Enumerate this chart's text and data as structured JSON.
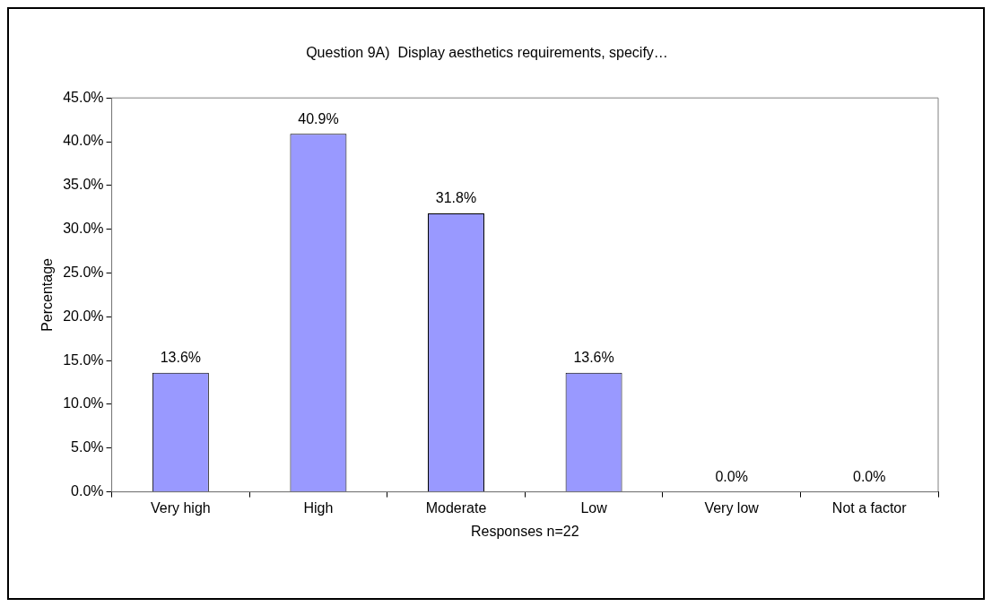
{
  "chart_data": {
    "type": "bar",
    "title": "Question 9A)  Display aesthetics requirements, specify…",
    "xlabel": "Responses n=22",
    "ylabel": "Percentage",
    "categories": [
      "Very high",
      "High",
      "Moderate",
      "Low",
      "Very low",
      "Not a factor"
    ],
    "values": [
      13.6,
      40.9,
      31.8,
      13.6,
      0.0,
      0.0
    ],
    "value_labels": [
      "13.6%",
      "40.9%",
      "31.8%",
      "13.6%",
      "0.0%",
      "0.0%"
    ],
    "color": "#9999ff",
    "ylim": [
      0,
      45
    ],
    "yticks": [
      {
        "value": 0,
        "label": "0.0%"
      },
      {
        "value": 5,
        "label": "5.0%"
      },
      {
        "value": 10,
        "label": "10.0%"
      },
      {
        "value": 15,
        "label": "15.0%"
      },
      {
        "value": 20,
        "label": "20.0%"
      },
      {
        "value": 25,
        "label": "25.0%"
      },
      {
        "value": 30,
        "label": "30.0%"
      },
      {
        "value": 35,
        "label": "35.0%"
      },
      {
        "value": 40,
        "label": "40.0%"
      },
      {
        "value": 45,
        "label": "45.0%"
      }
    ]
  }
}
